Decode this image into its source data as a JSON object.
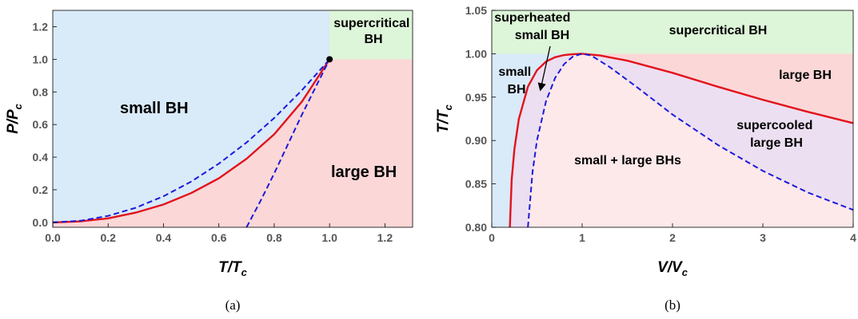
{
  "chart_data": [
    {
      "panel": "(a)",
      "type": "line",
      "caption": "(a)",
      "xlabel": "T/T",
      "xlabel_sub": "c",
      "ylabel": "P/P",
      "ylabel_sub": "c",
      "xlim": [
        0.0,
        1.3
      ],
      "ylim": [
        -0.03,
        1.3
      ],
      "x_ticks": [
        "0.0",
        "0.2",
        "0.4",
        "0.6",
        "0.8",
        "1.0",
        "1.2"
      ],
      "y_ticks": [
        "0.0",
        "0.2",
        "0.4",
        "0.6",
        "0.8",
        "1.0",
        "1.2"
      ],
      "regions": [
        {
          "label": "small BH",
          "color": "#d9eaf9"
        },
        {
          "label": "large BH",
          "color": "#fbd7d8"
        },
        {
          "label": "supercritical BH",
          "color": "#ddf5d8"
        }
      ],
      "critical_point": {
        "x": 1.0,
        "y": 1.0
      },
      "series": [
        {
          "style": "solid",
          "color": "#e3121b",
          "x": [
            0.0,
            0.1,
            0.2,
            0.3,
            0.4,
            0.5,
            0.6,
            0.7,
            0.8,
            0.9,
            1.0
          ],
          "y": [
            0.0,
            0.006,
            0.025,
            0.06,
            0.11,
            0.18,
            0.27,
            0.39,
            0.54,
            0.74,
            1.0
          ]
        },
        {
          "style": "dashed",
          "color": "#1a1adb",
          "x": [
            0.0,
            0.1,
            0.2,
            0.3,
            0.4,
            0.5,
            0.6,
            0.7,
            0.8,
            0.9,
            1.0
          ],
          "y": [
            0.0,
            0.01,
            0.04,
            0.09,
            0.16,
            0.25,
            0.36,
            0.49,
            0.64,
            0.81,
            1.0
          ]
        },
        {
          "style": "dashed",
          "color": "#1a1adb",
          "x": [
            0.7,
            0.75,
            0.8,
            0.85,
            0.9,
            0.95,
            1.0
          ],
          "y": [
            -0.03,
            0.13,
            0.3,
            0.48,
            0.66,
            0.83,
            1.0
          ]
        }
      ]
    },
    {
      "panel": "(b)",
      "type": "line",
      "caption": "(b)",
      "xlabel": "V/V",
      "xlabel_sub": "c",
      "ylabel": "T/T",
      "ylabel_sub": "c",
      "xlim": [
        0,
        4
      ],
      "ylim": [
        0.8,
        1.05
      ],
      "x_ticks": [
        "0",
        "1",
        "2",
        "3",
        "4"
      ],
      "y_ticks": [
        "0.80",
        "0.85",
        "0.90",
        "0.95",
        "1.00",
        "1.05"
      ],
      "regions": [
        {
          "label": "supercritical BH",
          "color": "#ddf5d8"
        },
        {
          "label": "small BH",
          "color": "#d9eaf9"
        },
        {
          "label": "large BH",
          "color": "#fbd7d8"
        },
        {
          "label": "small + large BHs",
          "color": "#fde8ea"
        },
        {
          "label": "supercooled large BH",
          "color": "#ecdff1"
        },
        {
          "label": "superheated small BH",
          "color": "#ecdff1"
        }
      ],
      "annotations": [
        "superheated",
        "small BH"
      ],
      "series": [
        {
          "style": "solid",
          "color": "#e3121b",
          "x": [
            0.2,
            0.22,
            0.25,
            0.3,
            0.4,
            0.5,
            0.6,
            0.7,
            0.8,
            0.9,
            1.0,
            1.2,
            1.5,
            2.0,
            2.5,
            3.0,
            3.5,
            4.0
          ],
          "y": [
            0.8,
            0.855,
            0.89,
            0.925,
            0.962,
            0.981,
            0.991,
            0.996,
            0.9985,
            0.9995,
            1.0,
            0.998,
            0.992,
            0.978,
            0.962,
            0.947,
            0.933,
            0.92
          ]
        },
        {
          "style": "dashed",
          "color": "#1a1adb",
          "x": [
            0.4,
            0.45,
            0.5,
            0.6,
            0.7,
            0.8,
            0.9,
            1.0,
            1.1,
            1.3,
            1.6,
            2.0,
            2.5,
            3.0,
            3.5,
            4.0
          ],
          "y": [
            0.8,
            0.863,
            0.9,
            0.945,
            0.972,
            0.988,
            0.997,
            1.0,
            0.998,
            0.985,
            0.962,
            0.93,
            0.895,
            0.865,
            0.84,
            0.82
          ]
        }
      ]
    }
  ]
}
